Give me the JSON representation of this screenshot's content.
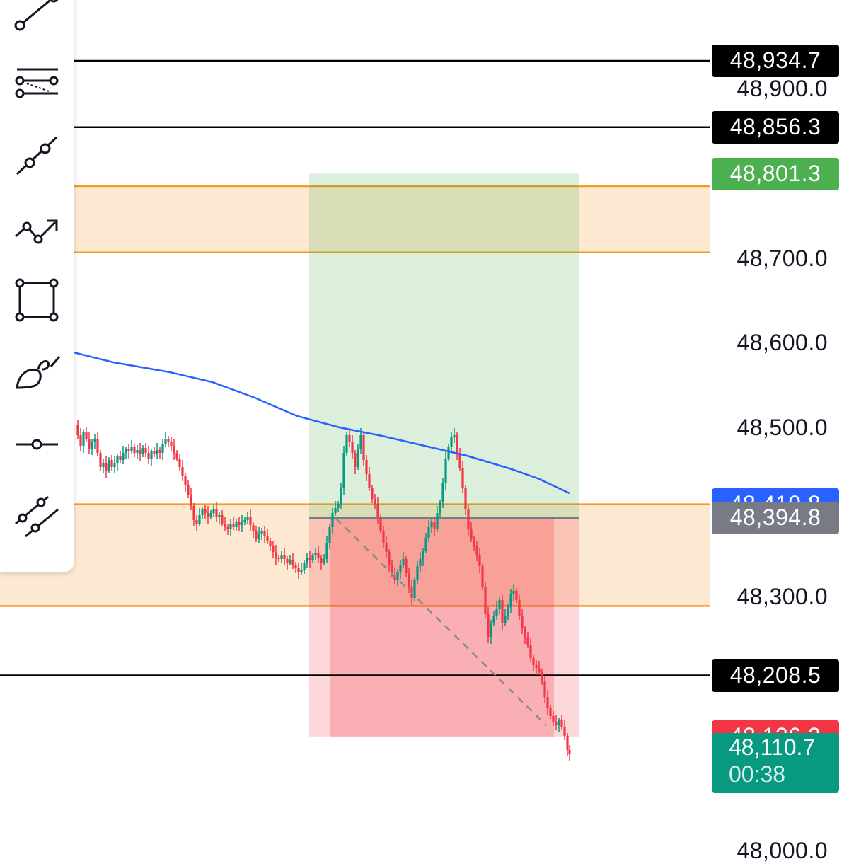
{
  "price_axis": {
    "labels": [
      {
        "text": "48,900.0",
        "price": 48900
      },
      {
        "text": "48,700.0",
        "price": 48700
      },
      {
        "text": "48,600.0",
        "price": 48600
      },
      {
        "text": "48,500.0",
        "price": 48500
      },
      {
        "text": "48,300.0",
        "price": 48300
      },
      {
        "text": "48,000.0",
        "price": 48000
      }
    ]
  },
  "price_tags": [
    {
      "text": "48,934.7",
      "price": 48934.7,
      "color": "#000000"
    },
    {
      "text": "48,856.3",
      "price": 48856.3,
      "color": "#000000"
    },
    {
      "text": "48,801.3",
      "price": 48801.3,
      "color": "#4caf50"
    },
    {
      "text": "48,410.8",
      "price": 48410.8,
      "color": "#2962ff"
    },
    {
      "text": "48,394.8",
      "price": 48394.8,
      "color": "#787b86"
    },
    {
      "text": "48,208.5",
      "price": 48208.5,
      "color": "#000000"
    },
    {
      "text": "48,136.3",
      "price": 48136.3,
      "color": "#f23645"
    }
  ],
  "last_price": {
    "price": "48,110.7",
    "countdown": "00:38",
    "color": "#089981"
  },
  "horizontal_lines": [
    48934.7,
    48856.3,
    48208.5
  ],
  "zones": [
    {
      "top": 48786.7,
      "bottom": 48708.3,
      "fill": "#fde9d2",
      "line": "#f59a23"
    },
    {
      "top": 48410.8,
      "bottom": 48290.6,
      "fill": "#fde9d2",
      "line": "#f59a23"
    }
  ],
  "position": {
    "entry": 48394.8,
    "target": 48801.3,
    "stop": 48136.3,
    "profit_color": "#4caf50",
    "loss_color": "#f23645"
  },
  "moving_average": {
    "color": "#2962ff"
  },
  "candle_colors": {
    "up": "#089981",
    "down": "#f23645"
  },
  "toolbar": {
    "tools": [
      {
        "name": "trend-line-icon"
      },
      {
        "name": "fib-retracement-icon"
      },
      {
        "name": "ray-line-icon"
      },
      {
        "name": "path-icon"
      },
      {
        "name": "rectangle-icon"
      },
      {
        "name": "brush-icon"
      },
      {
        "name": "horizontal-line-icon"
      },
      {
        "name": "parallel-channel-icon"
      }
    ]
  }
}
